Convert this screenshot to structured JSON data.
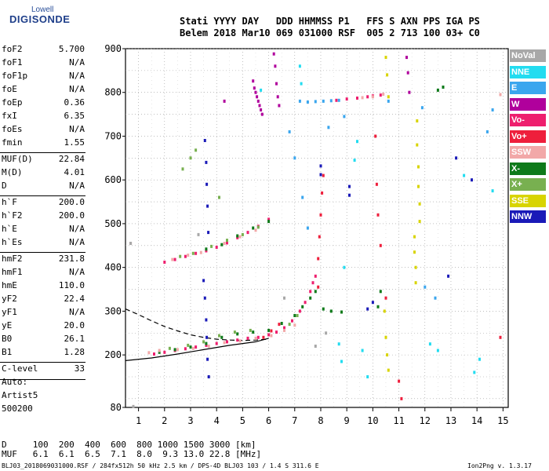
{
  "logo": {
    "top": "Lowell",
    "main": "DIGISONDE"
  },
  "header": {
    "line1": "Stati YYYY DAY   DDD HHMMSS P1   FFS S AXN PPS IGA PS",
    "line2": "Belem 2018 Mar10 069 031000 RSF  005 2 713 100 03+ C0"
  },
  "params": [
    [
      {
        "k": "foF2",
        "v": "5.700"
      },
      {
        "k": "foF1",
        "v": "N/A"
      },
      {
        "k": "foF1p",
        "v": "N/A"
      },
      {
        "k": "foE",
        "v": "N/A"
      },
      {
        "k": "foEp",
        "v": "0.36"
      },
      {
        "k": "fxI",
        "v": "6.35"
      },
      {
        "k": "foEs",
        "v": "N/A"
      },
      {
        "k": "fmin",
        "v": "1.55"
      }
    ],
    [
      {
        "k": "MUF(D)",
        "v": "22.84"
      },
      {
        "k": "M(D)",
        "v": "4.01"
      },
      {
        "k": "D",
        "v": "N/A"
      }
    ],
    [
      {
        "k": "h`F",
        "v": "200.0"
      },
      {
        "k": "h`F2",
        "v": "200.0"
      },
      {
        "k": "h`E",
        "v": "N/A"
      },
      {
        "k": "h`Es",
        "v": "N/A"
      }
    ],
    [
      {
        "k": "hmF2",
        "v": "231.8"
      },
      {
        "k": "hmF1",
        "v": "N/A"
      },
      {
        "k": "hmE",
        "v": "110.0"
      },
      {
        "k": "yF2",
        "v": "22.4"
      },
      {
        "k": "yF1",
        "v": "N/A"
      },
      {
        "k": "yE",
        "v": "20.0"
      },
      {
        "k": "B0",
        "v": "26.1"
      },
      {
        "k": "B1",
        "v": "1.28"
      }
    ],
    [
      {
        "k": "C-level",
        "v": "33"
      }
    ]
  ],
  "auto": [
    "Auto:",
    "Artist5",
    "500200"
  ],
  "legend": [
    {
      "label": "NoVal",
      "color": "#a8a8a8"
    },
    {
      "label": "NNE",
      "color": "#22dcf0"
    },
    {
      "label": "E",
      "color": "#3aa6ee"
    },
    {
      "label": "W",
      "color": "#b0009c"
    },
    {
      "label": "Vo-",
      "color": "#ee1f6e"
    },
    {
      "label": "Vo+",
      "color": "#ee1f3c"
    },
    {
      "label": "SSW",
      "color": "#f2a8a8"
    },
    {
      "label": "X-",
      "color": "#0e7a1a"
    },
    {
      "label": "X+",
      "color": "#78b050"
    },
    {
      "label": "SSE",
      "color": "#d8d400"
    },
    {
      "label": "NNW",
      "color": "#1a1ab8"
    }
  ],
  "muf_table": {
    "row1": "D     100  200  400  600  800 1000 1500 3000 [km]",
    "row2": "MUF   6.1  6.1  6.5  7.1  8.0  9.3 13.0 22.8 [MHz]"
  },
  "footer": {
    "left": "BLJ03_2018069031000.RSF / 284fx512h 50 kHz 2.5 km / DPS-4D BLJ03 103 / 1.4 S 311.6 E",
    "right": "Ion2Png v. 1.3.17"
  },
  "chart_data": {
    "type": "scatter",
    "title": "",
    "xlabel": "",
    "ylabel": "",
    "xlim": [
      0.5,
      15.2
    ],
    "ylim": [
      80,
      900
    ],
    "xticks": [
      1,
      2,
      3,
      4,
      5,
      6,
      7,
      8,
      9,
      10,
      11,
      12,
      13,
      14,
      15
    ],
    "yticks": [
      80,
      200,
      300,
      400,
      500,
      600,
      700,
      800,
      900
    ],
    "grid": true,
    "legend_position": "right",
    "series": [
      {
        "name": "Vo-",
        "color": "#ee1f6e",
        "points": [
          [
            1.6,
            202
          ],
          [
            2.0,
            206
          ],
          [
            2.4,
            210
          ],
          [
            2.8,
            214
          ],
          [
            3.2,
            218
          ],
          [
            3.6,
            222
          ],
          [
            4.0,
            226
          ],
          [
            4.4,
            230
          ],
          [
            4.8,
            234
          ],
          [
            5.2,
            238
          ],
          [
            5.6,
            240
          ],
          [
            6.0,
            246
          ],
          [
            6.3,
            252
          ],
          [
            6.6,
            262
          ],
          [
            6.9,
            278
          ],
          [
            7.2,
            300
          ],
          [
            7.4,
            320
          ],
          [
            7.6,
            345
          ],
          [
            7.7,
            365
          ],
          [
            7.8,
            380
          ],
          [
            2.0,
            412
          ],
          [
            2.4,
            418
          ],
          [
            2.8,
            425
          ],
          [
            3.2,
            432
          ],
          [
            3.6,
            438
          ],
          [
            4.0,
            446
          ],
          [
            4.4,
            456
          ],
          [
            4.8,
            468
          ],
          [
            5.2,
            480
          ],
          [
            5.6,
            494
          ],
          [
            6.0,
            510
          ],
          [
            8.6,
            782
          ],
          [
            9.0,
            785
          ],
          [
            9.4,
            787
          ],
          [
            9.8,
            790
          ],
          [
            10.0,
            792
          ],
          [
            10.3,
            794
          ]
        ]
      },
      {
        "name": "X-",
        "color": "#0e7a1a",
        "points": [
          [
            1.8,
            206
          ],
          [
            2.4,
            212
          ],
          [
            3.0,
            218
          ],
          [
            3.6,
            226
          ],
          [
            4.2,
            240
          ],
          [
            4.8,
            248
          ],
          [
            5.4,
            252
          ],
          [
            6.0,
            256
          ],
          [
            6.5,
            272
          ],
          [
            7.0,
            290
          ],
          [
            7.3,
            310
          ],
          [
            7.6,
            330
          ],
          [
            7.8,
            345
          ],
          [
            8.1,
            305
          ],
          [
            8.4,
            300
          ],
          [
            8.8,
            298
          ],
          [
            3.6,
            442
          ],
          [
            4.2,
            452
          ],
          [
            4.8,
            472
          ],
          [
            5.4,
            490
          ],
          [
            6.0,
            505
          ],
          [
            10.2,
            310
          ],
          [
            10.3,
            345
          ],
          [
            12.5,
            805
          ],
          [
            12.7,
            812
          ]
        ]
      },
      {
        "name": "E",
        "color": "#3aa6ee",
        "points": [
          [
            7.2,
            780
          ],
          [
            7.5,
            778
          ],
          [
            7.8,
            779
          ],
          [
            8.1,
            780
          ],
          [
            8.4,
            781
          ],
          [
            8.7,
            782
          ],
          [
            6.8,
            710
          ],
          [
            7.0,
            650
          ],
          [
            7.3,
            560
          ],
          [
            7.5,
            490
          ],
          [
            8.3,
            720
          ],
          [
            8.9,
            745
          ],
          [
            10.6,
            780
          ],
          [
            11.9,
            765
          ],
          [
            14.4,
            710
          ],
          [
            14.6,
            760
          ],
          [
            12.0,
            355
          ],
          [
            12.4,
            330
          ]
        ]
      },
      {
        "name": "W",
        "color": "#b0009c",
        "points": [
          [
            5.4,
            826
          ],
          [
            5.45,
            810
          ],
          [
            5.5,
            800
          ],
          [
            5.55,
            790
          ],
          [
            5.6,
            780
          ],
          [
            5.65,
            770
          ],
          [
            5.7,
            760
          ],
          [
            5.75,
            750
          ],
          [
            6.2,
            888
          ],
          [
            6.25,
            860
          ],
          [
            6.3,
            820
          ],
          [
            6.35,
            790
          ],
          [
            6.4,
            770
          ],
          [
            11.3,
            880
          ],
          [
            11.35,
            845
          ],
          [
            11.4,
            800
          ],
          [
            4.3,
            780
          ]
        ]
      },
      {
        "name": "NNW",
        "color": "#1a1ab8",
        "points": [
          [
            3.55,
            690
          ],
          [
            3.6,
            640
          ],
          [
            3.62,
            590
          ],
          [
            3.65,
            540
          ],
          [
            3.68,
            480
          ],
          [
            3.5,
            370
          ],
          [
            3.55,
            330
          ],
          [
            3.6,
            280
          ],
          [
            3.62,
            240
          ],
          [
            3.65,
            190
          ],
          [
            3.7,
            150
          ],
          [
            8.0,
            632
          ],
          [
            8.0,
            612
          ],
          [
            9.1,
            585
          ],
          [
            9.1,
            565
          ],
          [
            9.8,
            305
          ],
          [
            10.0,
            320
          ],
          [
            12.9,
            380
          ],
          [
            13.2,
            650
          ],
          [
            13.8,
            600
          ]
        ]
      },
      {
        "name": "Vo+",
        "color": "#ee1f3c",
        "points": [
          [
            5.8,
            240
          ],
          [
            6.1,
            255
          ],
          [
            6.4,
            270
          ],
          [
            7.9,
            355
          ],
          [
            7.9,
            420
          ],
          [
            7.95,
            470
          ],
          [
            8.0,
            520
          ],
          [
            8.05,
            570
          ],
          [
            8.1,
            610
          ],
          [
            10.1,
            700
          ],
          [
            10.15,
            590
          ],
          [
            10.2,
            520
          ],
          [
            10.3,
            450
          ],
          [
            10.5,
            330
          ],
          [
            11.0,
            140
          ],
          [
            11.1,
            100
          ],
          [
            14.9,
            240
          ]
        ]
      },
      {
        "name": "SSE",
        "color": "#d8d400",
        "points": [
          [
            10.5,
            880
          ],
          [
            10.55,
            840
          ],
          [
            10.6,
            790
          ],
          [
            11.7,
            735
          ],
          [
            11.7,
            680
          ],
          [
            11.75,
            630
          ],
          [
            11.75,
            585
          ],
          [
            11.8,
            545
          ],
          [
            11.8,
            505
          ],
          [
            11.6,
            470
          ],
          [
            11.6,
            435
          ],
          [
            11.65,
            400
          ],
          [
            11.65,
            365
          ],
          [
            10.45,
            300
          ],
          [
            10.5,
            240
          ],
          [
            10.55,
            200
          ],
          [
            10.6,
            165
          ]
        ]
      },
      {
        "name": "NNE",
        "color": "#22dcf0",
        "points": [
          [
            7.2,
            860
          ],
          [
            7.25,
            820
          ],
          [
            5.7,
            805
          ],
          [
            9.4,
            688
          ],
          [
            9.3,
            645
          ],
          [
            8.9,
            400
          ],
          [
            8.7,
            225
          ],
          [
            8.8,
            185
          ],
          [
            9.6,
            210
          ],
          [
            9.8,
            150
          ],
          [
            14.6,
            575
          ],
          [
            13.5,
            610
          ],
          [
            12.2,
            225
          ],
          [
            12.5,
            210
          ],
          [
            14.1,
            190
          ],
          [
            13.9,
            160
          ]
        ]
      },
      {
        "name": "X+",
        "color": "#78b050",
        "points": [
          [
            2.2,
            215
          ],
          [
            2.9,
            222
          ],
          [
            3.5,
            230
          ],
          [
            4.1,
            244
          ],
          [
            4.7,
            252
          ],
          [
            5.3,
            256
          ],
          [
            6.8,
            270
          ],
          [
            7.1,
            290
          ],
          [
            2.6,
            425
          ],
          [
            3.1,
            432
          ],
          [
            3.8,
            448
          ],
          [
            4.4,
            462
          ],
          [
            5.0,
            475
          ],
          [
            5.6,
            492
          ],
          [
            2.7,
            625
          ],
          [
            3.0,
            650
          ],
          [
            3.2,
            668
          ],
          [
            4.1,
            560
          ]
        ]
      },
      {
        "name": "SSW",
        "color": "#f2a8a8",
        "points": [
          [
            1.4,
            205
          ],
          [
            1.8,
            210
          ],
          [
            2.5,
            212
          ],
          [
            3.1,
            215
          ],
          [
            3.7,
            220
          ],
          [
            4.3,
            228
          ],
          [
            4.9,
            232
          ],
          [
            5.5,
            238
          ],
          [
            6.1,
            244
          ],
          [
            6.6,
            256
          ],
          [
            7.0,
            268
          ],
          [
            2.3,
            418
          ],
          [
            2.9,
            428
          ],
          [
            3.4,
            434
          ],
          [
            4.3,
            455
          ],
          [
            4.9,
            470
          ],
          [
            5.5,
            485
          ],
          [
            9.6,
            788
          ],
          [
            10.0,
            790
          ],
          [
            10.4,
            796
          ],
          [
            0.7,
            455
          ],
          [
            0.8,
            82
          ],
          [
            14.9,
            795
          ]
        ]
      },
      {
        "name": "NoVal",
        "color": "#a8a8a8",
        "points": [
          [
            0.7,
            455
          ],
          [
            0.8,
            82
          ],
          [
            3.3,
            475
          ],
          [
            7.8,
            220
          ],
          [
            8.2,
            250
          ],
          [
            6.6,
            330
          ]
        ]
      }
    ],
    "annotations": [
      {
        "type": "solid_curve",
        "color": "#000",
        "points": [
          [
            0.5,
            187
          ],
          [
            1.5,
            193
          ],
          [
            2.5,
            202
          ],
          [
            3.5,
            212
          ],
          [
            4.5,
            222
          ],
          [
            5.5,
            230
          ],
          [
            6.0,
            238
          ]
        ]
      },
      {
        "type": "dashed_curve",
        "color": "#000",
        "points": [
          [
            0.5,
            305
          ],
          [
            1.0,
            292
          ],
          [
            1.5,
            278
          ],
          [
            2.0,
            265
          ],
          [
            2.5,
            255
          ],
          [
            3.0,
            246
          ],
          [
            3.5,
            240
          ],
          [
            4.0,
            236
          ],
          [
            4.5,
            234
          ],
          [
            5.0,
            233
          ],
          [
            5.5,
            234
          ],
          [
            6.0,
            236
          ]
        ]
      }
    ]
  }
}
